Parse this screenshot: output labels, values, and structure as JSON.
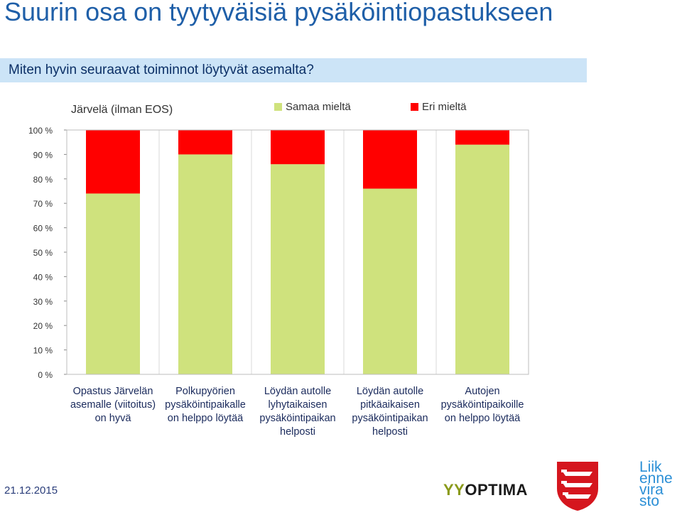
{
  "header": {
    "title": "Suurin osa on tyytyväisiä pysäköintiopastukseen",
    "question": "Miten hyvin seuraavat toiminnot löytyvät asemalta?"
  },
  "footer": {
    "date": "21.12.2015",
    "logo_optima": "YYOPTIMA",
    "logo_liikennevirasto": [
      "Liik",
      "enne",
      "vira",
      "sto"
    ]
  },
  "colors": {
    "agree": "#cfe27d",
    "disagree": "#ff0000",
    "title": "#1f5fa8",
    "band": "#cce4f7"
  },
  "chart_data": {
    "type": "bar",
    "stacked": true,
    "title": "Järvelä (ilman EOS)",
    "xlabel": "",
    "ylabel": "",
    "ylim": [
      0,
      100
    ],
    "yticks": [
      "0 %",
      "10 %",
      "20 %",
      "30 %",
      "40 %",
      "50 %",
      "60 %",
      "70 %",
      "80 %",
      "90 %",
      "100 %"
    ],
    "categories": [
      [
        "Opastus Järvelän",
        "asemalle (viitoitus)",
        "on hyvä"
      ],
      [
        "Polkupyörien",
        "pysäköintipaikalle",
        "on helppo löytää"
      ],
      [
        "Löydän autolle",
        "lyhytaikaisen",
        "pysäköintipaikan",
        "helposti"
      ],
      [
        "Löydän autolle",
        "pitkäaikaisen",
        "pysäköintipaikan",
        "helposti"
      ],
      [
        "Autojen",
        "pysäköintipaikoille",
        "on helppo löytää"
      ]
    ],
    "series": [
      {
        "name": "Samaa mieltä",
        "values": [
          74,
          90,
          86,
          76,
          94
        ]
      },
      {
        "name": "Eri mieltä",
        "values": [
          26,
          10,
          14,
          24,
          6
        ]
      }
    ],
    "grid": true,
    "legend": "top-right"
  }
}
